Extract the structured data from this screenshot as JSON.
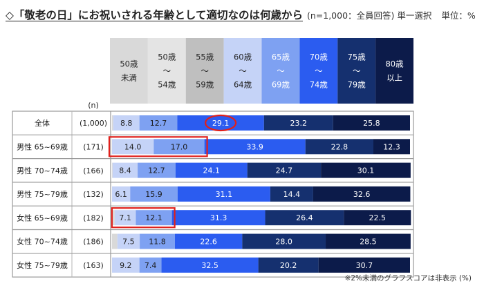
{
  "title": {
    "main": "◇「敬老の日」にお祝いされる年齢として適切なのは何歳から",
    "note": "(n=1,000：全員回答) 単一選択",
    "unit": "単位：%"
  },
  "footnote": "※2%未満のグラフスコアは非表示 (%)",
  "n_header": "(n)",
  "chart_data": {
    "type": "bar",
    "stacked": true,
    "orientation": "horizontal",
    "title": "「敬老の日」にお祝いされる年齢として適切なのは何歳から",
    "categories": [
      "全体",
      "男性 65~69歳",
      "男性 70~74歳",
      "男性 75~79歳",
      "女性 65~69歳",
      "女性 70~74歳",
      "女性 75~79歳"
    ],
    "n": [
      "(1,000)",
      "(171)",
      "(166)",
      "(132)",
      "(182)",
      "(186)",
      "(163)"
    ],
    "series": [
      {
        "name": "50歳未満",
        "label_lines": [
          "50歳",
          "未満"
        ],
        "color": "#d9d9d9",
        "header_text": "#222222",
        "label_text": "#222222",
        "values": [
          0.4,
          0,
          0.2,
          0,
          0.9,
          1.8,
          0
        ]
      },
      {
        "name": "50歳～54歳",
        "label_lines": [
          "50歳",
          "～",
          "54歳"
        ],
        "color": "#e4e4e4",
        "header_text": "#222222",
        "label_text": "#222222",
        "values": [
          0,
          0,
          0,
          0,
          0,
          0,
          0
        ]
      },
      {
        "name": "55歳～59歳",
        "label_lines": [
          "55歳",
          "～",
          "59歳"
        ],
        "color": "#bfbfbf",
        "header_text": "#222222",
        "label_text": "#222222",
        "values": [
          0,
          0,
          0,
          0,
          0,
          0,
          0
        ]
      },
      {
        "name": "60歳～64歳",
        "label_lines": [
          "60歳",
          "～",
          "64歳"
        ],
        "color": "#c5d3f7",
        "header_text": "#222222",
        "label_text": "#222222",
        "values": [
          8.8,
          14.0,
          8.4,
          6.1,
          7.1,
          7.5,
          9.2
        ]
      },
      {
        "name": "65歳～69歳",
        "label_lines": [
          "65歳",
          "～",
          "69歳"
        ],
        "color": "#7ea1f2",
        "header_text": "#ffffff",
        "label_text": "#1a1a1a",
        "values": [
          12.7,
          17.0,
          12.7,
          15.9,
          12.1,
          11.8,
          7.4
        ]
      },
      {
        "name": "70歳～74歳",
        "label_lines": [
          "70歳",
          "～",
          "74歳"
        ],
        "color": "#2b5cf0",
        "header_text": "#ffffff",
        "label_text": "#ffffff",
        "values": [
          29.1,
          33.9,
          24.1,
          31.1,
          31.3,
          22.6,
          32.5
        ]
      },
      {
        "name": "75歳～79歳",
        "label_lines": [
          "75歳",
          "～",
          "79歳"
        ],
        "color": "#15306f",
        "header_text": "#ffffff",
        "label_text": "#ffffff",
        "values": [
          23.2,
          22.8,
          24.7,
          14.4,
          26.4,
          28.0,
          20.2
        ]
      },
      {
        "name": "80歳以上",
        "label_lines": [
          "80歳",
          "以上"
        ],
        "color": "#0c1b4a",
        "header_text": "#ffffff",
        "label_text": "#ffffff",
        "values": [
          25.8,
          12.3,
          30.1,
          32.6,
          22.5,
          28.5,
          30.7
        ]
      }
    ],
    "data_labels": [
      [
        "8.8",
        "12.7",
        "29.1",
        "23.2",
        "25.8"
      ],
      [
        "14.0",
        "17.0",
        "33.9",
        "22.8",
        "12.3"
      ],
      [
        "8.4",
        "12.7",
        "24.1",
        "24.7",
        "30.1"
      ],
      [
        "6.1",
        "15.9",
        "31.1",
        "14.4",
        "32.6"
      ],
      [
        "7.1",
        "12.1",
        "31.3",
        "26.4",
        "22.5"
      ],
      [
        "7.5",
        "11.8",
        "22.6",
        "28.0",
        "28.5"
      ],
      [
        "9.2",
        "7.4",
        "32.5",
        "20.2",
        "30.7"
      ]
    ],
    "label_threshold": 2,
    "xlim": [
      0,
      100
    ],
    "highlights": [
      {
        "type": "ellipse",
        "row": 0,
        "series": "70歳～74歳",
        "color": "#e0201b"
      },
      {
        "type": "rect",
        "row": 1,
        "series_range": [
          "60歳～64歳",
          "65歳～69歳"
        ],
        "color": "#e0201b"
      },
      {
        "type": "rect",
        "row": 4,
        "series_range": [
          "60歳～64歳",
          "65歳～69歳"
        ],
        "color": "#e0201b"
      }
    ],
    "legend": "column headers above bars"
  }
}
